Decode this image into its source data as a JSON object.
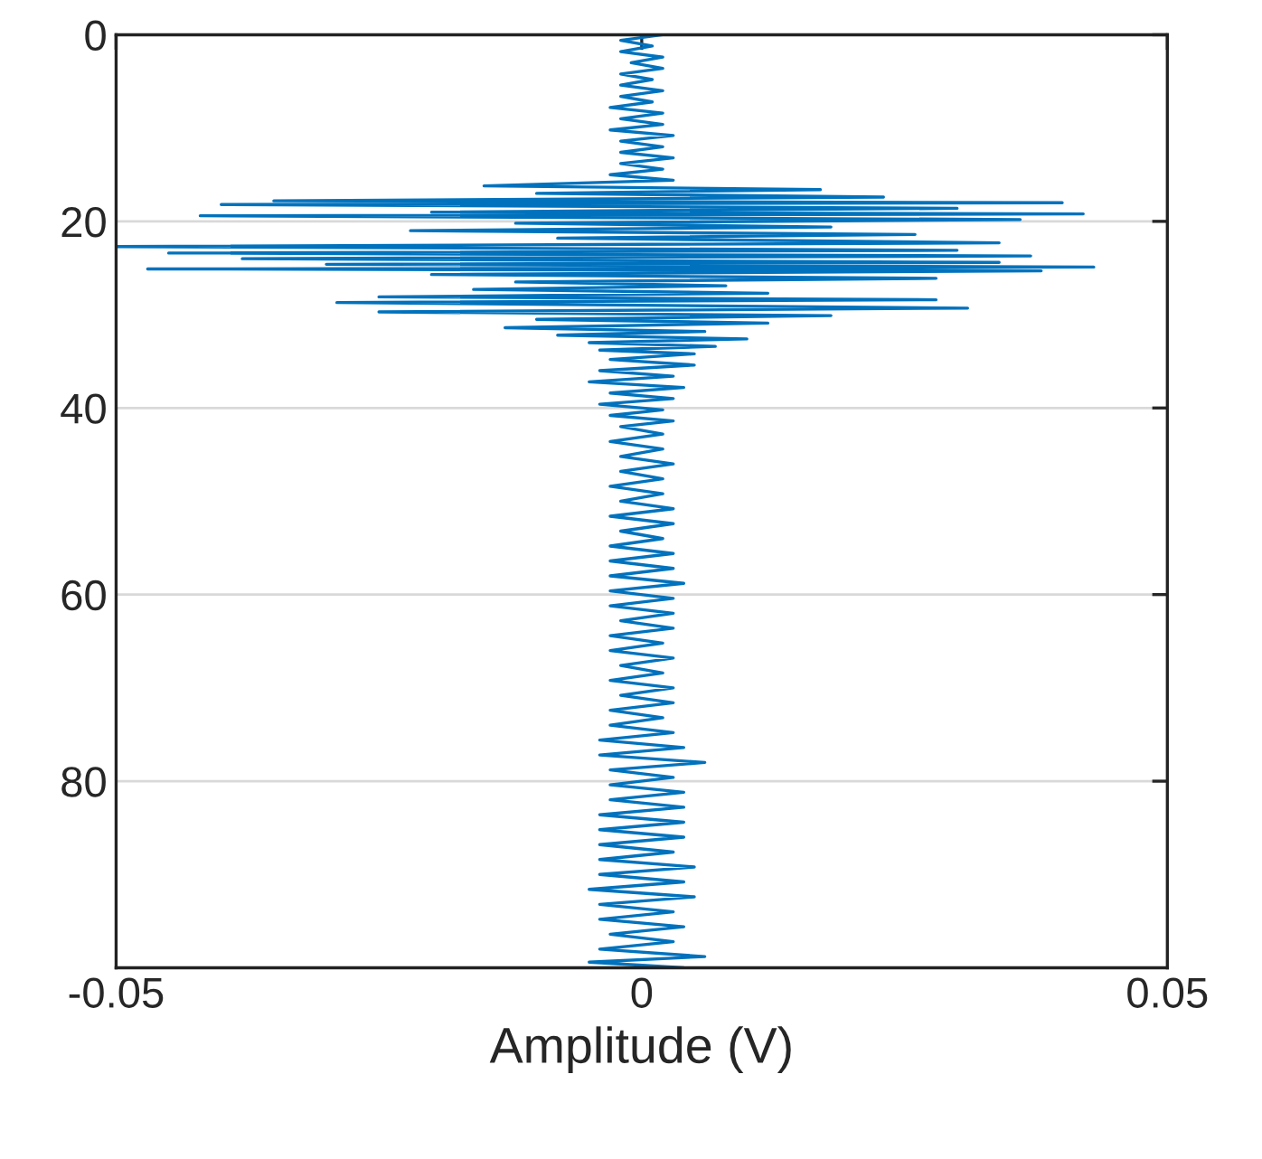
{
  "chart_data": {
    "type": "line",
    "xlabel": "Amplitude (V)",
    "xlim": [
      -0.05,
      0.05
    ],
    "xticks": [
      -0.05,
      0,
      0.05
    ],
    "ylim": [
      100,
      0
    ],
    "yticks": [
      0,
      20,
      40,
      60,
      80
    ],
    "grid": "y",
    "marker": "none",
    "line_style": "solid",
    "series": [
      {
        "color": "#0072bd",
        "x": [
          0.002,
          -0.002,
          0.001,
          -0.002,
          0.002,
          -0.001,
          0.002,
          -0.002,
          0.001,
          -0.002,
          0.002,
          -0.002,
          0.001,
          -0.003,
          0.002,
          -0.002,
          0.002,
          -0.003,
          0.003,
          -0.002,
          0.002,
          -0.002,
          0.003,
          -0.002,
          0.002,
          -0.003,
          0.003,
          -0.015,
          0.017,
          -0.01,
          0.023,
          -0.035,
          0.04,
          -0.04,
          0.03,
          -0.02,
          0.042,
          -0.042,
          0.036,
          -0.012,
          0.018,
          -0.022,
          0.026,
          -0.008,
          0.034,
          -0.05,
          0.03,
          -0.045,
          0.037,
          -0.038,
          0.034,
          -0.03,
          0.043,
          -0.047,
          0.038,
          -0.02,
          0.028,
          -0.012,
          0.008,
          -0.016,
          0.012,
          -0.025,
          0.028,
          -0.029,
          0.031,
          -0.025,
          0.018,
          -0.01,
          0.012,
          -0.013,
          0.006,
          -0.008,
          0.01,
          -0.005,
          0.007,
          -0.004,
          0.005,
          -0.003,
          0.005,
          -0.004,
          0.003,
          -0.005,
          0.004,
          -0.003,
          0.003,
          -0.004,
          0.002,
          -0.003,
          0.003,
          -0.002,
          0.002,
          -0.003,
          0.002,
          -0.002,
          0.003,
          -0.002,
          0.002,
          -0.003,
          0.002,
          -0.002,
          0.003,
          -0.003,
          0.003,
          -0.002,
          0.002,
          -0.003,
          0.003,
          -0.003,
          0.003,
          -0.003,
          0.004,
          -0.003,
          0.003,
          -0.003,
          0.003,
          -0.002,
          0.003,
          -0.003,
          0.002,
          -0.003,
          0.003,
          -0.002,
          0.002,
          -0.003,
          0.003,
          -0.002,
          0.003,
          -0.003,
          0.002,
          -0.003,
          0.003,
          -0.004,
          0.004,
          -0.004,
          0.006,
          -0.003,
          0.003,
          -0.003,
          0.004,
          -0.003,
          0.004,
          -0.004,
          0.004,
          -0.004,
          0.004,
          -0.004,
          0.003,
          -0.004,
          0.005,
          -0.004,
          0.004,
          -0.005,
          0.005,
          -0.004,
          0.003,
          -0.004,
          0.004,
          -0.003,
          0.003,
          -0.004,
          0.006,
          -0.005,
          0.004
        ],
        "values": [
          0,
          0.6,
          1.2,
          1.8,
          2.4,
          3,
          3.6,
          4.2,
          4.8,
          5.4,
          6,
          6.6,
          7.2,
          7.8,
          8.4,
          9,
          9.6,
          10.2,
          10.8,
          11.4,
          12,
          12.6,
          13.2,
          13.8,
          14.4,
          15,
          15.6,
          16.2,
          16.6,
          17.0,
          17.4,
          17.8,
          18.0,
          18.2,
          18.6,
          19.0,
          19.2,
          19.4,
          19.8,
          20.2,
          20.6,
          21.0,
          21.4,
          21.8,
          22.3,
          22.7,
          23.1,
          23.4,
          23.7,
          24.0,
          24.4,
          24.6,
          24.9,
          25.1,
          25.3,
          25.7,
          26.1,
          26.5,
          26.9,
          27.3,
          27.7,
          28.1,
          28.4,
          28.7,
          29.3,
          29.7,
          30.1,
          30.5,
          30.9,
          31.4,
          31.8,
          32.2,
          32.6,
          33.0,
          33.4,
          33.8,
          34.2,
          34.8,
          35.4,
          36,
          36.6,
          37.2,
          37.8,
          38.4,
          39,
          39.6,
          40.2,
          40.8,
          41.4,
          42,
          42.8,
          43.6,
          44.4,
          45.2,
          46,
          46.8,
          47.6,
          48.4,
          49.2,
          50,
          50.8,
          51.6,
          52.4,
          53.2,
          54,
          54.8,
          55.6,
          56.4,
          57.2,
          58,
          58.8,
          59.6,
          60.4,
          61.2,
          62,
          62.8,
          63.6,
          64.4,
          65.2,
          66,
          66.8,
          67.6,
          68.4,
          69.2,
          70,
          70.8,
          71.6,
          72.4,
          73.2,
          74,
          74.8,
          75.6,
          76.4,
          77.2,
          78,
          78.8,
          79.6,
          80.4,
          81.2,
          82,
          82.8,
          83.6,
          84.4,
          85.2,
          86,
          86.8,
          87.6,
          88.4,
          89.2,
          90,
          90.8,
          91.6,
          92.4,
          93.2,
          94,
          94.8,
          95.6,
          96.4,
          97.2,
          98,
          98.8,
          99.4,
          100
        ]
      }
    ]
  }
}
